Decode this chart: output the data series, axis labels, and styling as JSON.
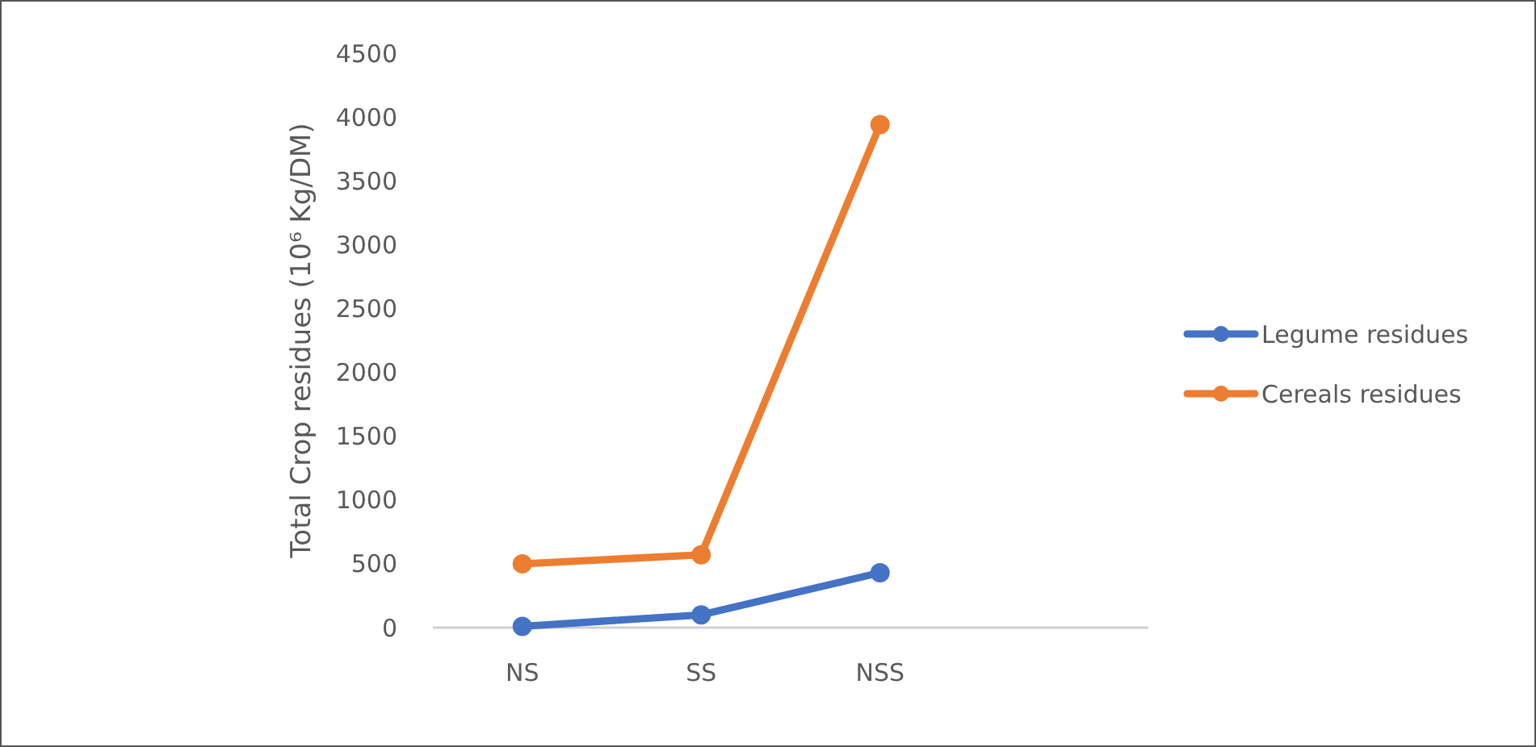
{
  "chart_data": {
    "type": "line",
    "ylabel": "Total Crop residues (10⁶ Kg/DM)",
    "categories": [
      "NS",
      "SS",
      "NSS",
      null
    ],
    "series": [
      {
        "name": "Legume residues",
        "color": "#4472c4",
        "values": [
          10,
          100,
          430,
          null
        ]
      },
      {
        "name": "Cereals residues",
        "color": "#ed7d31",
        "values": [
          500,
          570,
          3940,
          null
        ]
      }
    ],
    "ylim": [
      0,
      4500
    ],
    "yticks": [
      0,
      500,
      1000,
      1500,
      2000,
      2500,
      3000,
      3500,
      4000,
      4500
    ],
    "grid": false,
    "legend": "right",
    "marker": "circle",
    "line_style": "solid"
  }
}
